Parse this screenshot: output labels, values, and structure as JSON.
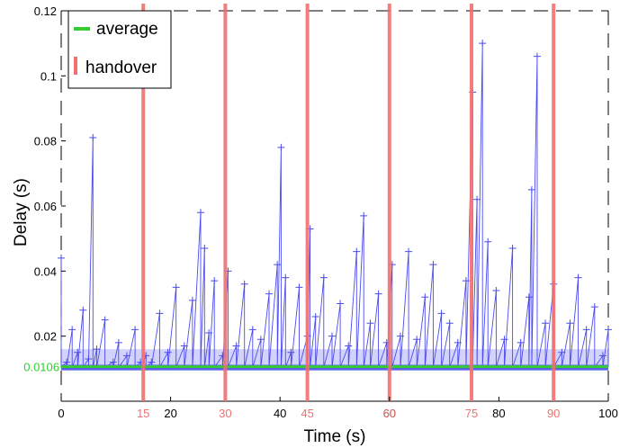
{
  "chart_data": {
    "type": "line",
    "title": "",
    "xlabel": "Time (s)",
    "ylabel": "Delay (s)",
    "xlim": [
      0,
      100
    ],
    "ylim": [
      0,
      0.12
    ],
    "x_ticks": [
      0,
      20,
      40,
      60,
      80,
      100
    ],
    "y_ticks": [
      0.02,
      0.04,
      0.06,
      0.08,
      0.1,
      0.12
    ],
    "y_tick_labels": [
      "0.02",
      "0.04",
      "0.06",
      "0.08",
      "0.1",
      "0.12"
    ],
    "grid": false,
    "legend_position": "top-left",
    "colors": {
      "delay": "#4b4bf0",
      "average": "#33cc33",
      "handover": "#f07070",
      "average_label": "#33cc33",
      "handover_label": "#f07070"
    },
    "series": [
      {
        "name": "average",
        "y": 0.0106,
        "label": "0.0106"
      },
      {
        "name": "handover",
        "x": [
          15,
          30,
          45,
          60,
          75,
          90
        ],
        "labels": [
          "15",
          "30",
          "45",
          "60",
          "75",
          "90"
        ]
      },
      {
        "x": [
          0,
          1,
          2,
          3,
          4,
          5,
          5.8,
          6.5,
          8,
          9.5,
          10.5,
          12,
          13.5,
          14.5,
          15.5,
          16.5,
          18,
          19.5,
          21,
          22.5,
          24,
          25.5,
          26.2,
          27,
          28,
          29.5,
          30.5,
          32,
          33.5,
          35,
          36.5,
          38,
          39.5,
          40.2,
          41,
          42,
          43.5,
          45,
          45.5,
          46.5,
          48,
          49.5,
          51,
          52.5,
          54,
          55.3,
          56.5,
          58,
          59.5,
          60.5,
          62,
          63.5,
          65,
          66.5,
          68,
          69.5,
          71,
          72.5,
          74,
          75.2,
          76,
          77,
          78,
          79.5,
          81,
          82.5,
          84,
          85.5,
          86,
          87,
          88.5,
          90,
          91.5,
          93,
          94.5,
          96,
          97.5,
          99,
          100
        ],
        "y": [
          0.044,
          0.012,
          0.022,
          0.015,
          0.028,
          0.013,
          0.081,
          0.016,
          0.025,
          0.012,
          0.018,
          0.014,
          0.022,
          0.012,
          0.014,
          0.012,
          0.027,
          0.015,
          0.035,
          0.017,
          0.031,
          0.058,
          0.047,
          0.021,
          0.037,
          0.014,
          0.04,
          0.017,
          0.036,
          0.022,
          0.019,
          0.033,
          0.042,
          0.078,
          0.038,
          0.015,
          0.035,
          0.02,
          0.053,
          0.026,
          0.038,
          0.02,
          0.03,
          0.017,
          0.046,
          0.057,
          0.024,
          0.033,
          0.018,
          0.042,
          0.02,
          0.046,
          0.019,
          0.032,
          0.042,
          0.027,
          0.024,
          0.018,
          0.037,
          0.095,
          0.062,
          0.11,
          0.049,
          0.034,
          0.019,
          0.047,
          0.018,
          0.032,
          0.065,
          0.106,
          0.024,
          0.036,
          0.015,
          0.024,
          0.038,
          0.022,
          0.029,
          0.014,
          0.022
        ]
      }
    ]
  }
}
